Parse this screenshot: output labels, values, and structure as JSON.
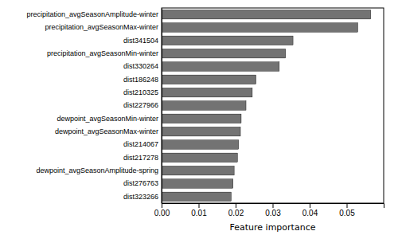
{
  "chart_data": {
    "type": "bar",
    "orientation": "horizontal",
    "categories": [
      "dist323266",
      "dist276763",
      "dewpoint_avgSeasonAmplitude-spring",
      "dist217278",
      "dist214067",
      "dewpoint_avgSeasonMax-winter",
      "dewpoint_avgSeasonMin-winter",
      "dist227966",
      "dist210325",
      "dist186248",
      "dist330264",
      "precipitation_avgSeasonMin-winter",
      "dist341504",
      "precipitation_avgSeasonMax-winter",
      "precipitation_avgSeasonAmplitude-winter"
    ],
    "values": [
      0.0188,
      0.0193,
      0.0196,
      0.0205,
      0.0208,
      0.0213,
      0.0215,
      0.0228,
      0.0245,
      0.0255,
      0.0318,
      0.0335,
      0.0355,
      0.053,
      0.0565
    ],
    "color": "#737373",
    "xlabel": "Feature importance",
    "xlim": [
      0,
      0.06
    ],
    "xticks": [
      {
        "value": 0.0,
        "label": "0.00"
      },
      {
        "value": 0.01,
        "label": "0.01"
      },
      {
        "value": 0.02,
        "label": "0.02"
      },
      {
        "value": 0.03,
        "label": "0.03"
      },
      {
        "value": 0.04,
        "label": "0.04"
      },
      {
        "value": 0.05,
        "label": "0.05"
      }
    ]
  }
}
